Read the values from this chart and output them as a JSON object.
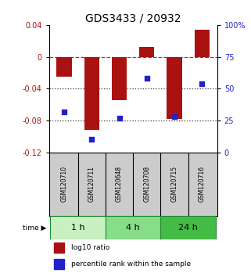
{
  "title": "GDS3433 / 20932",
  "samples": [
    "GSM120710",
    "GSM120711",
    "GSM120648",
    "GSM120708",
    "GSM120715",
    "GSM120716"
  ],
  "groups": [
    {
      "label": "1 h",
      "indices": [
        0,
        1
      ],
      "color": "#c8f0c0"
    },
    {
      "label": "4 h",
      "indices": [
        2,
        3
      ],
      "color": "#88dd88"
    },
    {
      "label": "24 h",
      "indices": [
        4,
        5
      ],
      "color": "#44bb44"
    }
  ],
  "log10_ratio": [
    -0.025,
    -0.092,
    -0.055,
    0.012,
    -0.078,
    0.034
  ],
  "percentile_rank": [
    32,
    10,
    27,
    58,
    28,
    54
  ],
  "bar_color": "#aa1111",
  "dot_color": "#2222cc",
  "left_ylim": [
    -0.12,
    0.04
  ],
  "left_yticks": [
    0.04,
    0.0,
    -0.04,
    -0.08,
    -0.12
  ],
  "left_yticklabels": [
    "0.04",
    "0",
    "-0.04",
    "-0.08",
    "-0.12"
  ],
  "right_ylim": [
    0,
    100
  ],
  "right_yticks": [
    100,
    75,
    50,
    25,
    0
  ],
  "right_yticklabels": [
    "100%",
    "75",
    "50",
    "25",
    "0"
  ],
  "zero_line_color": "#cc2222",
  "dotted_line_color": "#333333",
  "bar_width": 0.55,
  "legend_red": "log10 ratio",
  "legend_blue": "percentile rank within the sample",
  "title_fontsize": 10,
  "tick_fontsize": 7,
  "sample_fontsize": 5.5,
  "group_label_fontsize": 8,
  "legend_fontsize": 6.5
}
